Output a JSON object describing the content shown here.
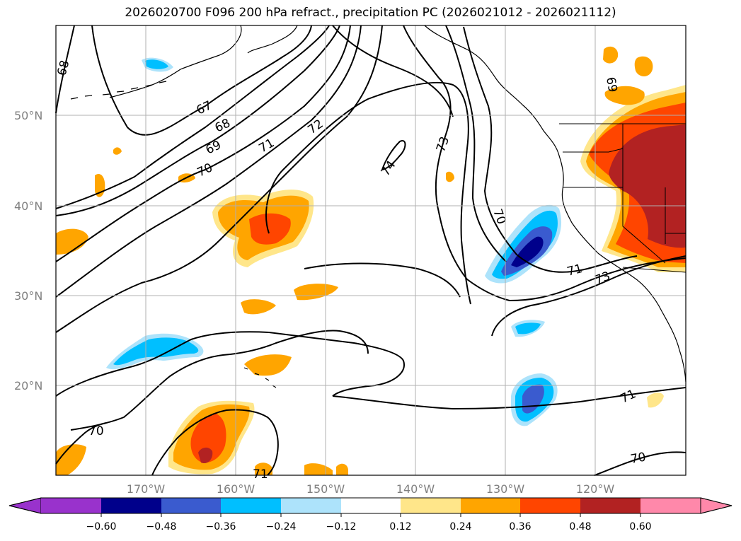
{
  "title": "2026020700 F096 200 hPa refract., precipitation PC (2026021012 - 2026021112)",
  "lat_labels": [
    "50°N",
    "40°N",
    "30°N",
    "20°N"
  ],
  "lon_labels": [
    "170°W",
    "160°W",
    "150°W",
    "140°W",
    "130°W",
    "120°W"
  ],
  "contour_labels": [
    "67",
    "68",
    "69",
    "70",
    "71",
    "72",
    "73",
    "74",
    "68",
    "69",
    "70",
    "71",
    "73",
    "70",
    "71",
    "70",
    "71"
  ],
  "colorbar": {
    "ticks": [
      "−0.60",
      "−0.48",
      "−0.36",
      "−0.24",
      "−0.12",
      "0.12",
      "0.24",
      "0.36",
      "0.48",
      "0.60"
    ],
    "colors": [
      "#9932cc",
      "#00008b",
      "#3a5bcf",
      "#00bfff",
      "#ade3fb",
      "#ffffff",
      "#ffe68a",
      "#ffa500",
      "#ff4500",
      "#b22222",
      "#ff88aa"
    ]
  },
  "colors": {
    "positive_low": "#ffe68a",
    "positive_mid": "#ffa500",
    "positive_high": "#ff4500",
    "positive_max": "#b22222",
    "negative_low": "#ade3fb",
    "negative_mid": "#00bfff",
    "negative_high": "#3a5bcf",
    "negative_max": "#00008b"
  }
}
